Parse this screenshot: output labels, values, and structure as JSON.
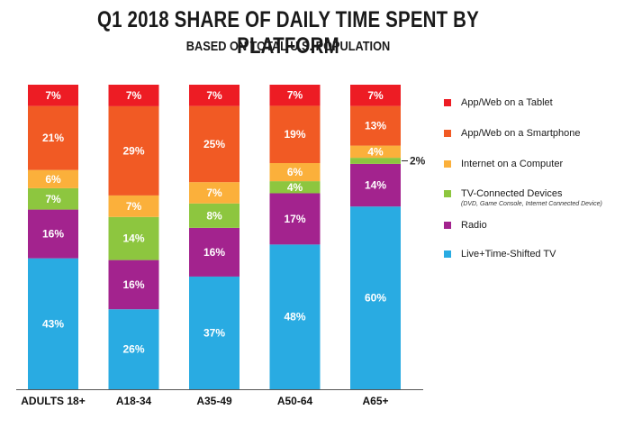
{
  "chart_data": {
    "type": "bar",
    "stacked": true,
    "title": "Q1 2018 SHARE OF DAILY TIME SPENT BY PLATFORM",
    "subtitle": "BASED ON TOTAL U.S. POPULATION",
    "categories": [
      "ADULTS 18+",
      "A18-34",
      "A35-49",
      "A50-64",
      "A65+"
    ],
    "ylim": [
      0,
      100
    ],
    "grid": false,
    "legend_position": "right",
    "series": [
      {
        "name": "Live+Time-Shifted TV",
        "color": "#29abe2",
        "values": [
          43,
          26,
          37,
          48,
          60
        ]
      },
      {
        "name": "Radio",
        "color": "#a3238e",
        "values": [
          16,
          16,
          16,
          17,
          14
        ]
      },
      {
        "name": "TV-Connected Devices",
        "note": "(DVD, Game Console, Internet Connected Device)",
        "color": "#8dc63f",
        "values": [
          7,
          14,
          8,
          4,
          2
        ]
      },
      {
        "name": "Internet on a Computer",
        "color": "#fbb03b",
        "values": [
          6,
          7,
          7,
          6,
          4
        ]
      },
      {
        "name": "App/Web on a Smartphone",
        "color": "#f15a24",
        "values": [
          21,
          29,
          25,
          19,
          13
        ]
      },
      {
        "name": "App/Web on a Tablet",
        "color": "#ed1c24",
        "values": [
          7,
          7,
          7,
          7,
          7
        ]
      }
    ],
    "data_labels": [
      [
        "43%",
        "16%",
        "7%",
        "6%",
        "21%",
        "7%"
      ],
      [
        "26%",
        "16%",
        "14%",
        "7%",
        "29%",
        "7%"
      ],
      [
        "37%",
        "16%",
        "8%",
        "7%",
        "25%",
        "7%"
      ],
      [
        "48%",
        "17%",
        "4%",
        "6%",
        "19%",
        "7%"
      ],
      [
        "60%",
        "14%",
        "2%",
        "4%",
        "13%",
        "7%"
      ]
    ]
  }
}
